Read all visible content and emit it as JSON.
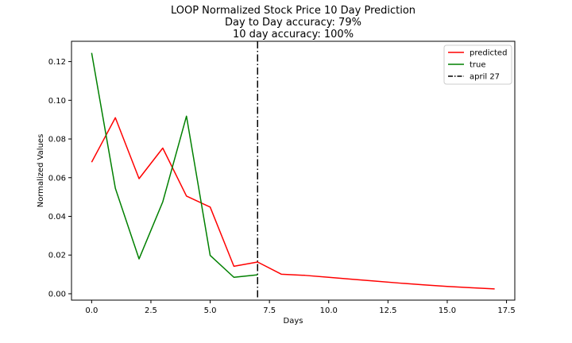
{
  "chart_data": {
    "type": "line",
    "title_lines": [
      "LOOP Normalized Stock Price 10 Day Prediction",
      "Day to Day accuracy: 79%",
      "10 day accuracy: 100%"
    ],
    "xlabel": "Days",
    "ylabel": "Normalized Values",
    "xlim": [
      -0.85,
      17.85
    ],
    "ylim": [
      -0.0033,
      0.1305
    ],
    "x_ticks": [
      0.0,
      2.5,
      5.0,
      7.5,
      10.0,
      12.5,
      15.0,
      17.5
    ],
    "x_tick_labels": [
      "0.0",
      "2.5",
      "5.0",
      "7.5",
      "10.0",
      "12.5",
      "15.0",
      "17.5"
    ],
    "y_ticks": [
      0.0,
      0.02,
      0.04,
      0.06,
      0.08,
      0.1,
      0.12
    ],
    "y_tick_labels": [
      "0.00",
      "0.02",
      "0.04",
      "0.06",
      "0.08",
      "0.10",
      "0.12"
    ],
    "grid": false,
    "legend_position": "top-right",
    "series": [
      {
        "name": "predicted",
        "color": "#ff0000",
        "style": "solid",
        "x": [
          0,
          1,
          2,
          3,
          4,
          5,
          6,
          7,
          8,
          9,
          10,
          11,
          12,
          13,
          14,
          15,
          16,
          17
        ],
        "y": [
          0.068,
          0.091,
          0.0595,
          0.0753,
          0.0505,
          0.0448,
          0.0142,
          0.0164,
          0.0101,
          0.0095,
          0.0085,
          0.0075,
          0.0065,
          0.0055,
          0.0046,
          0.0038,
          0.0031,
          0.0025
        ]
      },
      {
        "name": "true",
        "color": "#008000",
        "style": "solid",
        "x": [
          0,
          1,
          2,
          3,
          4,
          5,
          6,
          7
        ],
        "y": [
          0.1245,
          0.0545,
          0.018,
          0.0475,
          0.0918,
          0.0198,
          0.0085,
          0.0098
        ]
      }
    ],
    "vlines": [
      {
        "name": "april 27",
        "x": 7,
        "color": "#000000",
        "style": "dashdot"
      }
    ]
  }
}
